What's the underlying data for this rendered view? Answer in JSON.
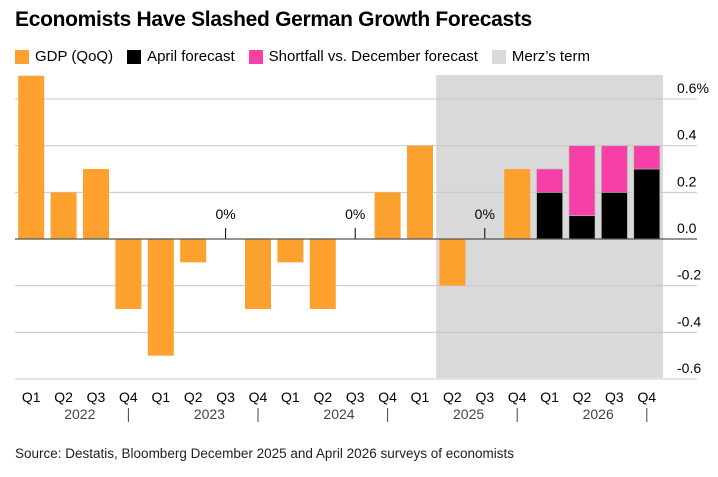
{
  "title": "Economists Have Slashed German Growth Forecasts",
  "legend": [
    {
      "label": "GDP (QoQ)",
      "color": "#fda12e"
    },
    {
      "label": "April forecast",
      "color": "#000000"
    },
    {
      "label": "Shortfall vs. December forecast",
      "color": "#f73fa8"
    },
    {
      "label": "Merz’s term",
      "color": "#d9d9d9"
    }
  ],
  "source": "Source: Destatis, Bloomberg December 2025 and April 2026 surveys of economists",
  "chart_data": {
    "type": "bar",
    "title": "Economists Have Slashed German Growth Forecasts",
    "categories": [
      "Q1",
      "Q2",
      "Q3",
      "Q4",
      "Q1",
      "Q2",
      "Q3",
      "Q4",
      "Q1",
      "Q2",
      "Q3",
      "Q4",
      "Q1",
      "Q2",
      "Q3",
      "Q4",
      "Q1",
      "Q2",
      "Q3",
      "Q4"
    ],
    "years": [
      "2022",
      "2023",
      "2024",
      "2025",
      "2026"
    ],
    "series": [
      {
        "name": "GDP (QoQ)",
        "values": [
          0.7,
          0.2,
          0.3,
          -0.3,
          -0.5,
          -0.1,
          0,
          -0.3,
          -0.1,
          -0.3,
          0,
          0.2,
          0.4,
          -0.2,
          0,
          0.3,
          null,
          null,
          null,
          null
        ]
      },
      {
        "name": "April forecast",
        "values": [
          null,
          null,
          null,
          null,
          null,
          null,
          null,
          null,
          null,
          null,
          null,
          null,
          null,
          null,
          null,
          null,
          0.2,
          0.1,
          0.2,
          0.3
        ]
      },
      {
        "name": "Shortfall vs. December forecast",
        "values": [
          null,
          null,
          null,
          null,
          null,
          null,
          null,
          null,
          null,
          null,
          null,
          null,
          null,
          null,
          null,
          null,
          0.1,
          0.3,
          0.2,
          0.1
        ]
      }
    ],
    "zero_labels": "0%",
    "shaded_region": {
      "name": "Merz’s term",
      "from": "2025 Q2",
      "to": "2026 Q4"
    },
    "yticks": [
      "0.6%",
      "0.4",
      "0.2",
      "0.0",
      "-0.2",
      "-0.4",
      "-0.6"
    ],
    "ytick_values": [
      0.6,
      0.4,
      0.2,
      0,
      -0.2,
      -0.4,
      -0.6
    ],
    "ylim": [
      -0.6,
      0.7
    ],
    "grid": true
  }
}
